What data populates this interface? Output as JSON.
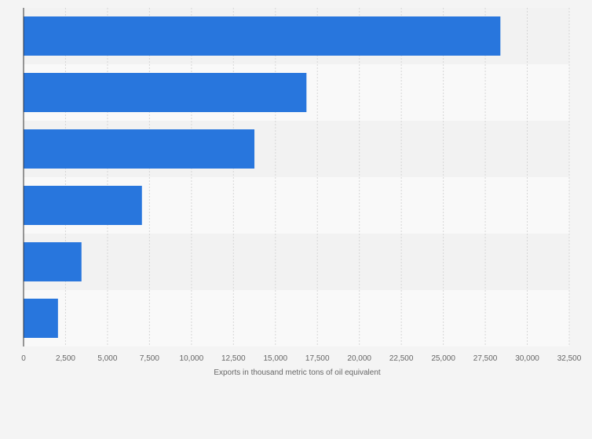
{
  "chart_data": {
    "type": "bar",
    "orientation": "horizontal",
    "categories": [
      "",
      "",
      "",
      "",
      "",
      ""
    ],
    "values": [
      28400,
      16850,
      13750,
      7050,
      3450,
      2050
    ],
    "xlabel": "Exports in thousand metric tons of oil equivalent",
    "ylabel": "",
    "xlim": [
      0,
      32500
    ],
    "xticks": [
      0,
      2500,
      5000,
      7500,
      10000,
      12500,
      15000,
      17500,
      20000,
      22500,
      25000,
      27500,
      30000,
      32500
    ],
    "grid": true,
    "legend": "none",
    "bar_color": "#2876dd",
    "band_colors": [
      "#f2f2f2",
      "#f9f9f9"
    ]
  }
}
